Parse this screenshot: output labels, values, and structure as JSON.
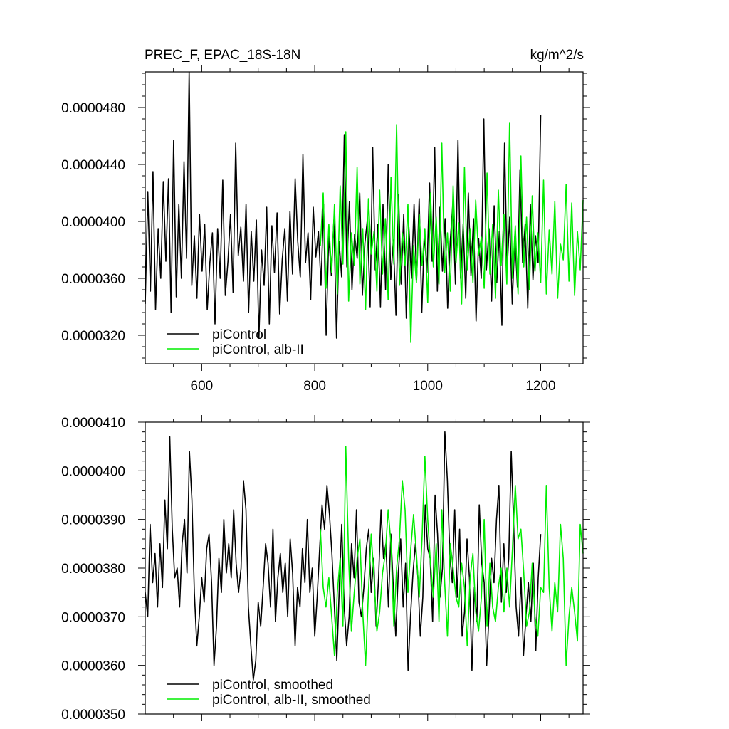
{
  "chart_data": [
    {
      "type": "line",
      "title": "PREC_F, EPAC_18S-18N",
      "units": "kg/m^2/s",
      "xlim": [
        500,
        1275
      ],
      "ylim": [
        3e-05,
        5.05e-05
      ],
      "x_ticks": [
        "600",
        "800",
        "1000",
        "1200"
      ],
      "y_ticks": [
        "0.0000320",
        "0.0000360",
        "0.0000400",
        "0.0000440",
        "0.0000480"
      ],
      "grid": false,
      "legend_position": "bottom-left",
      "series": [
        {
          "name": "piControl",
          "color": "#000000",
          "x_start": 500,
          "x_end": 1200,
          "values": [
            3.42e-05,
            4.21e-05,
            3.51e-05,
            4.35e-05,
            3.38e-05,
            3.95e-05,
            3.6e-05,
            4.28e-05,
            3.72e-05,
            4.3e-05,
            3.36e-05,
            4.57e-05,
            3.47e-05,
            4.12e-05,
            3.6e-05,
            4.42e-05,
            3.74e-05,
            5.05e-05,
            3.55e-05,
            3.9e-05,
            3.46e-05,
            4.05e-05,
            3.65e-05,
            3.98e-05,
            3.38e-05,
            3.71e-05,
            3.92e-05,
            3.28e-05,
            3.95e-05,
            3.6e-05,
            4.29e-05,
            3.48e-05,
            3.72e-05,
            4.05e-05,
            3.5e-05,
            4.55e-05,
            3.76e-05,
            3.96e-05,
            3.58e-05,
            4.12e-05,
            3.36e-05,
            3.93e-05,
            3.58e-05,
            4.01e-05,
            3.18e-05,
            3.8e-05,
            3.55e-05,
            4.1e-05,
            3.28e-05,
            3.97e-05,
            3.64e-05,
            4.06e-05,
            3.35e-05,
            3.73e-05,
            3.95e-05,
            3.44e-05,
            4.07e-05,
            3.63e-05,
            4.3e-05,
            3.86e-05,
            3.61e-05,
            4.47e-05,
            3.71e-05,
            3.92e-05,
            3.45e-05,
            4.1e-05,
            3.75e-05,
            3.93e-05,
            3.55e-05,
            4.12e-05,
            3.2e-05,
            3.91e-05,
            3.62e-05,
            4.01e-05,
            3.18e-05,
            3.86e-05,
            3.61e-05,
            4.61e-05,
            3.68e-05,
            4.14e-05,
            3.52e-05,
            3.91e-05,
            3.74e-05,
            4.2e-05,
            3.48e-05,
            3.85e-05,
            4.02e-05,
            3.4e-05,
            4.52e-05,
            3.66e-05,
            3.98e-05,
            3.4e-05,
            4.12e-05,
            3.52e-05,
            4.4e-05,
            3.59e-05,
            3.87e-05,
            3.34e-05,
            4.19e-05,
            3.56e-05,
            4.05e-05,
            3.32e-05,
            3.96e-05,
            3.6e-05,
            4.12e-05,
            3.59e-05,
            4.16e-05,
            3.36e-05,
            3.92e-05,
            3.64e-05,
            4.27e-05,
            3.72e-05,
            4.52e-05,
            3.51e-05,
            4.1e-05,
            3.65e-05,
            4.02e-05,
            3.39e-05,
            3.86e-05,
            4.12e-05,
            3.56e-05,
            4.57e-05,
            3.6e-05,
            3.98e-05,
            3.46e-05,
            4.2e-05,
            3.62e-05,
            4.02e-05,
            3.3e-05,
            3.88e-05,
            3.6e-05,
            4.72e-05,
            3.66e-05,
            3.95e-05,
            3.44e-05,
            4.11e-05,
            3.57e-05,
            3.93e-05,
            3.27e-05,
            4.55e-05,
            3.66e-05,
            4.03e-05,
            3.42e-05,
            3.9e-05,
            3.54e-05,
            4.36e-05,
            3.71e-05,
            3.98e-05,
            3.39e-05,
            4.12e-05,
            3.59e-05,
            3.9e-05,
            3.71e-05,
            4.75e-05
          ]
        },
        {
          "name": "piControl, alb-II",
          "color": "#00ee00",
          "x_start": 810,
          "x_end": 1275,
          "values": [
            3.83e-05,
            4.2e-05,
            3.53e-05,
            3.98e-05,
            3.64e-05,
            4.12e-05,
            3.49e-05,
            4.25e-05,
            3.7e-05,
            4.63e-05,
            3.44e-05,
            3.92e-05,
            3.69e-05,
            4.38e-05,
            3.56e-05,
            3.95e-05,
            3.38e-05,
            4.16e-05,
            3.77e-05,
            3.93e-05,
            3.51e-05,
            4.22e-05,
            3.63e-05,
            4.02e-05,
            3.45e-05,
            4.31e-05,
            3.7e-05,
            4.68e-05,
            3.55e-05,
            3.92e-05,
            3.69e-05,
            4.12e-05,
            3.15e-05,
            3.83e-05,
            3.57e-05,
            4.05e-05,
            3.69e-05,
            3.95e-05,
            3.43e-05,
            4.2e-05,
            3.68e-05,
            4.03e-05,
            3.56e-05,
            4.55e-05,
            3.64e-05,
            3.92e-05,
            3.51e-05,
            4.25e-05,
            3.71e-05,
            3.99e-05,
            3.42e-05,
            4.38e-05,
            3.66e-05,
            3.95e-05,
            3.57e-05,
            4.15e-05,
            3.76e-05,
            3.89e-05,
            3.53e-05,
            4.34e-05,
            3.63e-05,
            3.98e-05,
            3.46e-05,
            4.22e-05,
            3.69e-05,
            4.05e-05,
            3.56e-05,
            4.69e-05,
            3.6e-05,
            3.97e-05,
            3.49e-05,
            4.46e-05,
            3.68e-05,
            4.03e-05,
            3.52e-05,
            4.18e-05,
            3.65e-05,
            3.92e-05,
            3.57e-05,
            4.29e-05,
            3.49e-05,
            3.94e-05,
            3.63e-05,
            4.14e-05,
            3.46e-05,
            3.84e-05,
            3.73e-05,
            4.26e-05,
            3.58e-05,
            4.13e-05,
            3.48e-05,
            3.93e-05,
            3.66e-05,
            4.15e-05
          ]
        }
      ]
    },
    {
      "type": "line",
      "title": "",
      "xlim": [
        500,
        1275
      ],
      "ylim": [
        3.5e-05,
        4.1e-05
      ],
      "x_ticks": [],
      "y_ticks": [
        "0.0000350",
        "0.0000360",
        "0.0000370",
        "0.0000380",
        "0.0000390",
        "0.0000400",
        "0.0000410"
      ],
      "grid": false,
      "legend_position": "bottom-left",
      "series": [
        {
          "name": "piControl, smoothed",
          "color": "#000000",
          "x_start": 500,
          "x_end": 1200,
          "values": [
            3.75e-05,
            3.7e-05,
            3.89e-05,
            3.77e-05,
            3.83e-05,
            3.72e-05,
            3.85e-05,
            3.76e-05,
            3.94e-05,
            3.84e-05,
            4.07e-05,
            3.88e-05,
            3.78e-05,
            3.8e-05,
            3.72e-05,
            3.85e-05,
            3.9e-05,
            3.79e-05,
            4.04e-05,
            3.94e-05,
            3.75e-05,
            3.64e-05,
            3.7e-05,
            3.78e-05,
            3.73e-05,
            3.84e-05,
            3.87e-05,
            3.77e-05,
            3.6e-05,
            3.68e-05,
            3.82e-05,
            3.75e-05,
            3.9e-05,
            3.79e-05,
            3.85e-05,
            3.78e-05,
            3.92e-05,
            3.81e-05,
            3.75e-05,
            3.8e-05,
            3.98e-05,
            3.92e-05,
            3.72e-05,
            3.64e-05,
            3.57e-05,
            3.61e-05,
            3.73e-05,
            3.68e-05,
            3.76e-05,
            3.85e-05,
            3.81e-05,
            3.72e-05,
            3.88e-05,
            3.69e-05,
            3.78e-05,
            3.83e-05,
            3.75e-05,
            3.81e-05,
            3.7e-05,
            3.86e-05,
            3.79e-05,
            3.64e-05,
            3.76e-05,
            3.72e-05,
            3.84e-05,
            3.77e-05,
            3.9e-05,
            3.75e-05,
            3.8e-05,
            3.66e-05,
            3.74e-05,
            3.84e-05,
            3.93e-05,
            3.88e-05,
            3.97e-05,
            3.91e-05,
            3.83e-05,
            3.72e-05,
            3.61e-05,
            3.76e-05,
            3.89e-05,
            3.72e-05,
            3.64e-05,
            3.7e-05,
            3.85e-05,
            3.78e-05,
            3.92e-05,
            3.73e-05,
            3.7e-05,
            3.76e-05,
            3.84e-05,
            3.88e-05,
            3.75e-05,
            3.82e-05,
            3.68e-05,
            3.78e-05,
            3.92e-05,
            3.82e-05,
            3.85e-05,
            3.72e-05,
            3.87e-05,
            3.76e-05,
            3.66e-05,
            3.79e-05,
            3.86e-05,
            3.72e-05,
            3.81e-05,
            3.59e-05,
            3.7e-05,
            3.79e-05,
            3.85e-05,
            3.78e-05,
            3.66e-05,
            3.74e-05,
            3.93e-05,
            3.84e-05,
            3.82e-05,
            3.69e-05,
            3.95e-05,
            3.87e-05,
            3.74e-05,
            3.8e-05,
            4.08e-05,
            3.98e-05,
            3.83e-05,
            3.77e-05,
            3.92e-05,
            3.74e-05,
            3.88e-05,
            3.66e-05,
            3.71e-05,
            3.86e-05,
            3.78e-05,
            3.59e-05,
            3.76e-05,
            3.69e-05,
            3.93e-05,
            3.81e-05,
            3.77e-05,
            3.6e-05,
            3.71e-05,
            3.82e-05,
            3.77e-05,
            3.9e-05,
            3.97e-05,
            3.73e-05,
            3.85e-05,
            3.75e-05,
            3.82e-05,
            4.04e-05,
            3.89e-05,
            3.72e-05,
            3.66e-05,
            3.78e-05,
            3.62e-05,
            3.7e-05,
            3.77e-05,
            3.69e-05,
            3.81e-05,
            3.63e-05,
            3.78e-05,
            3.87e-05
          ]
        },
        {
          "name": "piControl, alb-II, smoothed",
          "color": "#00ee00",
          "x_start": 810,
          "x_end": 1275,
          "values": [
            3.88e-05,
            3.76e-05,
            3.72e-05,
            3.78e-05,
            3.7e-05,
            3.62e-05,
            3.75e-05,
            3.82e-05,
            3.68e-05,
            4.05e-05,
            3.82e-05,
            3.67e-05,
            3.75e-05,
            3.82e-05,
            3.86e-05,
            3.71e-05,
            3.6e-05,
            3.75e-05,
            3.87e-05,
            3.78e-05,
            3.67e-05,
            3.71e-05,
            3.79e-05,
            3.83e-05,
            3.92e-05,
            3.85e-05,
            3.68e-05,
            3.8e-05,
            3.86e-05,
            3.98e-05,
            3.92e-05,
            3.75e-05,
            3.84e-05,
            3.91e-05,
            3.83e-05,
            3.74e-05,
            3.86e-05,
            4.03e-05,
            3.9e-05,
            3.81e-05,
            3.74e-05,
            3.85e-05,
            3.69e-05,
            3.92e-05,
            3.77e-05,
            3.66e-05,
            3.85e-05,
            3.8e-05,
            3.74e-05,
            3.72e-05,
            3.81e-05,
            3.76e-05,
            3.64e-05,
            3.78e-05,
            3.83e-05,
            3.71e-05,
            3.67e-05,
            3.74e-05,
            3.9e-05,
            3.68e-05,
            3.81e-05,
            3.72e-05,
            3.69e-05,
            3.76e-05,
            3.8e-05,
            3.71e-05,
            3.8e-05,
            3.72e-05,
            3.84e-05,
            3.97e-05,
            3.86e-05,
            3.88e-05,
            3.79e-05,
            3.68e-05,
            3.71e-05,
            3.81e-05,
            3.7e-05,
            3.66e-05,
            3.76e-05,
            3.75e-05,
            3.97e-05,
            3.76e-05,
            3.67e-05,
            3.77e-05,
            3.71e-05,
            3.89e-05,
            3.82e-05,
            3.6e-05,
            3.7e-05,
            3.76e-05,
            3.71e-05,
            3.65e-05,
            3.89e-05,
            3.83e-05
          ]
        }
      ]
    }
  ]
}
